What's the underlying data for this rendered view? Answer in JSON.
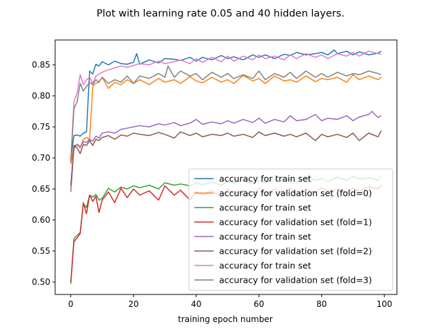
{
  "chart_data": {
    "type": "line",
    "title": "Plot with learning rate 0.05 and 40 hidden layers.",
    "xlabel": "training epoch number",
    "ylabel": "",
    "xlim": [
      -5,
      104
    ],
    "ylim": [
      0.48,
      0.89
    ],
    "xticks": [
      0,
      20,
      40,
      60,
      80,
      100
    ],
    "yticks": [
      0.5,
      0.55,
      0.6,
      0.65,
      0.7,
      0.75,
      0.8,
      0.85
    ],
    "grid": false,
    "legend_position": "lower-right",
    "series": [
      {
        "name": "accuracy for train set",
        "color": "#1f77b4",
        "x": [
          0,
          1,
          2,
          3,
          4,
          5,
          6,
          7,
          8,
          9,
          10,
          12,
          14,
          16,
          18,
          20,
          21,
          22,
          25,
          28,
          30,
          33,
          35,
          38,
          40,
          42,
          45,
          48,
          50,
          52,
          55,
          58,
          60,
          62,
          65,
          68,
          70,
          72,
          75,
          78,
          80,
          82,
          84,
          85,
          88,
          90,
          92,
          95,
          98,
          99
        ],
        "y": [
          0.7,
          0.736,
          0.737,
          0.735,
          0.74,
          0.742,
          0.84,
          0.835,
          0.851,
          0.848,
          0.855,
          0.85,
          0.856,
          0.852,
          0.851,
          0.854,
          0.868,
          0.851,
          0.858,
          0.853,
          0.86,
          0.859,
          0.857,
          0.862,
          0.856,
          0.862,
          0.858,
          0.865,
          0.86,
          0.863,
          0.858,
          0.866,
          0.862,
          0.866,
          0.86,
          0.867,
          0.865,
          0.87,
          0.866,
          0.868,
          0.87,
          0.866,
          0.874,
          0.868,
          0.872,
          0.866,
          0.871,
          0.866,
          0.869,
          0.872
        ]
      },
      {
        "name": "accuracy for validation set (fold=0)",
        "color": "#ff7f0e",
        "x": [
          0,
          1,
          2,
          3,
          4,
          5,
          6,
          7,
          8,
          9,
          10,
          12,
          14,
          16,
          18,
          20,
          22,
          25,
          28,
          30,
          33,
          35,
          38,
          40,
          42,
          45,
          48,
          50,
          52,
          55,
          58,
          60,
          62,
          65,
          68,
          70,
          72,
          75,
          78,
          80,
          82,
          85,
          88,
          90,
          92,
          95,
          98,
          99
        ],
        "y": [
          0.69,
          0.72,
          0.721,
          0.716,
          0.73,
          0.733,
          0.73,
          0.815,
          0.82,
          0.822,
          0.83,
          0.812,
          0.822,
          0.818,
          0.826,
          0.82,
          0.826,
          0.818,
          0.828,
          0.822,
          0.826,
          0.82,
          0.831,
          0.824,
          0.821,
          0.83,
          0.822,
          0.826,
          0.82,
          0.833,
          0.824,
          0.828,
          0.82,
          0.832,
          0.824,
          0.826,
          0.822,
          0.832,
          0.823,
          0.828,
          0.826,
          0.83,
          0.822,
          0.834,
          0.826,
          0.832,
          0.826,
          0.83
        ]
      },
      {
        "name": "accuracy for train set",
        "color": "#2ca02c",
        "x": [
          0,
          1,
          2,
          3,
          4,
          5,
          6,
          7,
          8,
          9,
          10,
          12,
          14,
          16,
          18,
          20,
          22,
          25,
          28,
          30,
          33,
          35,
          38,
          40,
          42,
          45,
          48,
          50,
          52,
          55,
          58,
          60,
          62,
          65,
          68,
          70,
          72,
          75,
          78,
          80,
          82,
          85,
          88,
          90,
          92,
          95,
          98,
          99
        ],
        "y": [
          0.497,
          0.57,
          0.575,
          0.58,
          0.626,
          0.62,
          0.64,
          0.637,
          0.641,
          0.632,
          0.635,
          0.651,
          0.645,
          0.653,
          0.65,
          0.655,
          0.652,
          0.656,
          0.65,
          0.66,
          0.656,
          0.658,
          0.655,
          0.66,
          0.657,
          0.661,
          0.656,
          0.662,
          0.66,
          0.664,
          0.658,
          0.663,
          0.66,
          0.666,
          0.662,
          0.666,
          0.66,
          0.668,
          0.664,
          0.667,
          0.662,
          0.669,
          0.664,
          0.67,
          0.666,
          0.668,
          0.664,
          0.672
        ]
      },
      {
        "name": "accuracy for validation set (fold=1)",
        "color": "#d62728",
        "x": [
          0,
          1,
          2,
          3,
          4,
          5,
          6,
          7,
          8,
          9,
          10,
          12,
          14,
          16,
          18,
          20,
          22,
          25,
          28,
          30,
          33,
          35,
          38,
          40,
          42,
          45,
          48,
          50,
          52,
          55,
          58,
          60,
          62,
          65,
          68,
          70,
          72,
          75,
          78,
          80,
          82,
          85,
          88,
          90,
          92,
          95,
          98,
          99
        ],
        "y": [
          0.5,
          0.565,
          0.571,
          0.578,
          0.628,
          0.61,
          0.64,
          0.63,
          0.638,
          0.612,
          0.632,
          0.645,
          0.628,
          0.651,
          0.636,
          0.65,
          0.64,
          0.647,
          0.632,
          0.655,
          0.64,
          0.648,
          0.632,
          0.646,
          0.64,
          0.648,
          0.636,
          0.65,
          0.642,
          0.648,
          0.638,
          0.652,
          0.64,
          0.65,
          0.642,
          0.652,
          0.641,
          0.65,
          0.644,
          0.652,
          0.646,
          0.65,
          0.644,
          0.652,
          0.646,
          0.654,
          0.65,
          0.656
        ]
      },
      {
        "name": "accuracy for train set",
        "color": "#9467bd",
        "x": [
          0,
          1,
          2,
          3,
          4,
          5,
          6,
          7,
          8,
          9,
          10,
          12,
          14,
          16,
          18,
          20,
          22,
          25,
          28,
          30,
          33,
          35,
          38,
          40,
          42,
          45,
          48,
          50,
          52,
          55,
          58,
          60,
          62,
          65,
          68,
          70,
          72,
          75,
          78,
          80,
          82,
          85,
          88,
          90,
          92,
          95,
          96,
          98,
          99
        ],
        "y": [
          0.645,
          0.715,
          0.722,
          0.718,
          0.726,
          0.725,
          0.73,
          0.727,
          0.735,
          0.732,
          0.74,
          0.742,
          0.74,
          0.746,
          0.748,
          0.75,
          0.752,
          0.75,
          0.755,
          0.753,
          0.757,
          0.752,
          0.756,
          0.762,
          0.754,
          0.758,
          0.755,
          0.76,
          0.756,
          0.762,
          0.757,
          0.764,
          0.756,
          0.762,
          0.758,
          0.768,
          0.76,
          0.762,
          0.77,
          0.76,
          0.764,
          0.762,
          0.768,
          0.76,
          0.766,
          0.77,
          0.775,
          0.765,
          0.768
        ]
      },
      {
        "name": "accuracy for validation set (fold=2)",
        "color": "#8c564b",
        "x": [
          0,
          1,
          2,
          3,
          4,
          5,
          6,
          7,
          8,
          9,
          10,
          12,
          14,
          16,
          18,
          20,
          22,
          25,
          28,
          30,
          33,
          35,
          38,
          40,
          42,
          45,
          48,
          50,
          52,
          55,
          58,
          60,
          62,
          65,
          68,
          70,
          72,
          75,
          78,
          80,
          82,
          85,
          88,
          90,
          92,
          95,
          98,
          99
        ],
        "y": [
          0.655,
          0.72,
          0.716,
          0.707,
          0.722,
          0.72,
          0.728,
          0.72,
          0.73,
          0.728,
          0.733,
          0.736,
          0.73,
          0.737,
          0.735,
          0.74,
          0.738,
          0.736,
          0.741,
          0.738,
          0.732,
          0.742,
          0.736,
          0.74,
          0.734,
          0.738,
          0.736,
          0.74,
          0.735,
          0.738,
          0.733,
          0.742,
          0.736,
          0.74,
          0.735,
          0.738,
          0.734,
          0.74,
          0.728,
          0.738,
          0.734,
          0.738,
          0.733,
          0.74,
          0.728,
          0.74,
          0.734,
          0.744
        ]
      },
      {
        "name": "accuracy for train set",
        "color": "#e377c2",
        "x": [
          0,
          1,
          2,
          3,
          4,
          5,
          6,
          7,
          8,
          9,
          10,
          12,
          14,
          16,
          18,
          20,
          22,
          25,
          28,
          30,
          33,
          35,
          38,
          40,
          42,
          45,
          48,
          50,
          52,
          55,
          58,
          60,
          62,
          65,
          68,
          70,
          72,
          75,
          78,
          80,
          82,
          85,
          88,
          90,
          92,
          95,
          98,
          99
        ],
        "y": [
          0.695,
          0.79,
          0.805,
          0.834,
          0.818,
          0.826,
          0.83,
          0.82,
          0.832,
          0.835,
          0.838,
          0.842,
          0.845,
          0.848,
          0.846,
          0.849,
          0.852,
          0.85,
          0.856,
          0.852,
          0.855,
          0.858,
          0.852,
          0.86,
          0.854,
          0.862,
          0.855,
          0.864,
          0.856,
          0.864,
          0.858,
          0.866,
          0.86,
          0.864,
          0.858,
          0.866,
          0.86,
          0.868,
          0.862,
          0.866,
          0.86,
          0.868,
          0.864,
          0.87,
          0.864,
          0.872,
          0.868,
          0.867
        ]
      },
      {
        "name": "accuracy for validation set (fold=3)",
        "color": "#7f7f7f",
        "x": [
          0,
          1,
          2,
          3,
          4,
          5,
          6,
          7,
          8,
          9,
          10,
          12,
          14,
          16,
          18,
          20,
          22,
          25,
          28,
          30,
          31,
          33,
          35,
          38,
          40,
          42,
          45,
          48,
          50,
          52,
          55,
          58,
          60,
          62,
          65,
          68,
          70,
          72,
          75,
          78,
          80,
          82,
          85,
          88,
          90,
          92,
          95,
          98,
          99
        ],
        "y": [
          0.693,
          0.78,
          0.79,
          0.82,
          0.808,
          0.815,
          0.822,
          0.818,
          0.826,
          0.822,
          0.83,
          0.82,
          0.826,
          0.822,
          0.832,
          0.82,
          0.832,
          0.828,
          0.836,
          0.83,
          0.848,
          0.83,
          0.84,
          0.832,
          0.836,
          0.826,
          0.838,
          0.83,
          0.836,
          0.828,
          0.834,
          0.828,
          0.84,
          0.826,
          0.836,
          0.83,
          0.838,
          0.828,
          0.84,
          0.83,
          0.836,
          0.83,
          0.838,
          0.832,
          0.836,
          0.834,
          0.84,
          0.836,
          0.834
        ]
      }
    ]
  }
}
